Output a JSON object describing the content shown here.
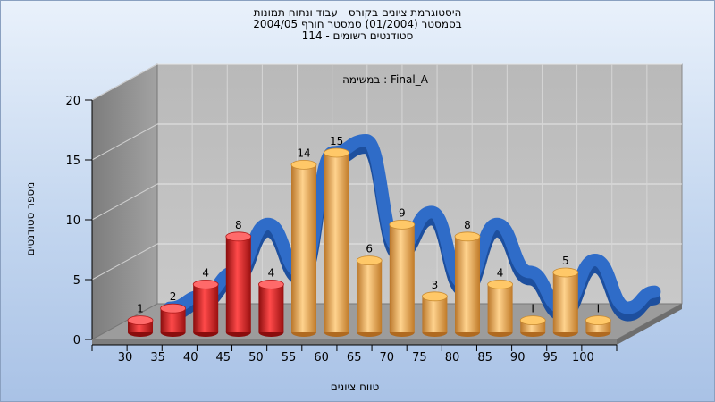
{
  "titles": [
    "היסטוגרמת ציונים בקורס - עבוד ונתוח תמונות",
    "בסמסטר  (01/2004)  סמסטר חורף 2004/05",
    "סטודנטים רשומים - 114"
  ],
  "chart_data": {
    "type": "bar",
    "inner_title": "במשימה : Final_A",
    "xlabel": "טווח ציונים",
    "ylabel": "מספר סטודנטים",
    "x_tick_labels": [
      "30",
      "35",
      "40",
      "45",
      "50",
      "55",
      "60",
      "65",
      "70",
      "75",
      "80",
      "85",
      "90",
      "95",
      "100"
    ],
    "y_ticks": [
      0,
      5,
      10,
      15,
      20
    ],
    "ylim": [
      0,
      20
    ],
    "categories": [
      "30",
      "35",
      "40",
      "45",
      "50",
      "55",
      "60",
      "65",
      "70",
      "75",
      "80",
      "85",
      "90",
      "95",
      "100"
    ],
    "values": [
      1,
      2,
      4,
      8,
      4,
      14,
      15,
      6,
      9,
      3,
      8,
      4,
      1,
      5,
      1
    ],
    "value_labels": [
      "1",
      "2",
      "4",
      "8",
      "4",
      "14",
      "15",
      "6",
      "9",
      "3",
      "8",
      "4",
      "I",
      "5",
      "I"
    ],
    "colors": [
      "#e02020",
      "#e02020",
      "#e02020",
      "#e02020",
      "#e02020",
      "#e8a646",
      "#e8a646",
      "#e8a646",
      "#e8a646",
      "#e8a646",
      "#e8a646",
      "#e8a646",
      "#e8a646",
      "#e8a646",
      "#e8a646"
    ],
    "curve_color": "#2f6cc8",
    "grid": true
  }
}
